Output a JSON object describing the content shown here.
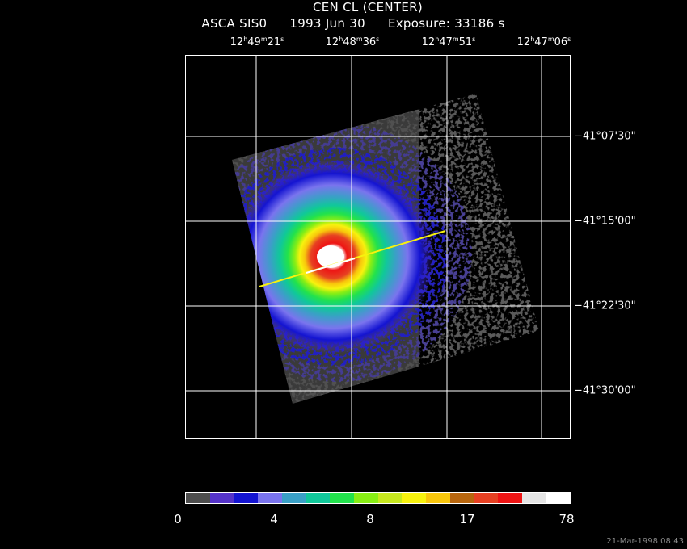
{
  "header": {
    "title": "CEN CL (CENTER)",
    "instrument": "ASCA SIS0",
    "date": "1993 Jun 30",
    "exposure": "Exposure: 33186 s"
  },
  "axes": {
    "ra_ticks": [
      {
        "h": "12",
        "m": "49",
        "s": "21"
      },
      {
        "h": "12",
        "m": "48",
        "s": "36"
      },
      {
        "h": "12",
        "m": "47",
        "s": "51"
      },
      {
        "h": "12",
        "m": "47",
        "s": "06"
      }
    ],
    "dec_ticks": [
      "−41°07'30\"",
      "−41°15'00\"",
      "−41°22'30\"",
      "−41°30'00\""
    ]
  },
  "colorbar": {
    "colors": [
      "#4d4d4d",
      "#5533c9",
      "#1414d2",
      "#7a74ee",
      "#3aa0c6",
      "#10c89a",
      "#22e24c",
      "#88ee14",
      "#c7e81e",
      "#f7f20e",
      "#f8c60c",
      "#b8660e",
      "#e64022",
      "#ee1414",
      "#e4e4e4",
      "#ffffff"
    ],
    "tick_labels": [
      "0",
      "4",
      "8",
      "17",
      "78"
    ]
  },
  "footer": {
    "timestamp": "21-Mar-1998 08:43"
  }
}
